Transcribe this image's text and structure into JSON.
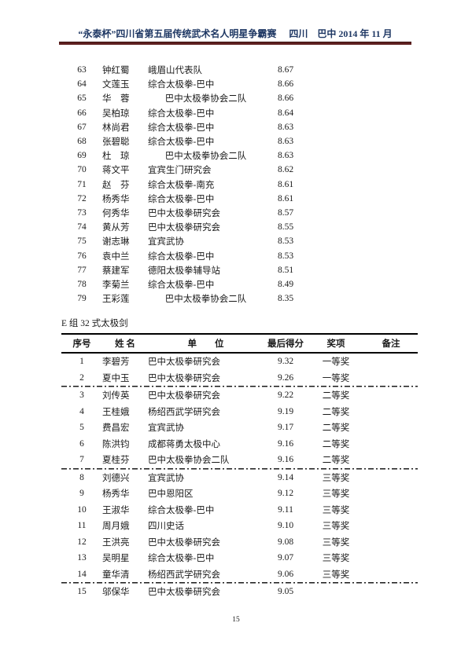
{
  "colors": {
    "header_text_navy": "#1F3864",
    "header_rule_maroon": "#5F2120",
    "body_text": "#1A1A1A"
  },
  "header": {
    "title": "“永泰杯”四川省第五届传统武术名人明星争霸赛",
    "location_date": "四川　巴中 2014 年 11 月"
  },
  "previous_group_results": {
    "rows": [
      {
        "no": "63",
        "name": "钟红蜀",
        "unit": "峨眉山代表队",
        "score": "8.67",
        "unit_center": false
      },
      {
        "no": "64",
        "name": "文莲玉",
        "unit": "综合太极拳-巴中",
        "score": "8.66",
        "unit_center": false
      },
      {
        "no": "65",
        "name": "华　蓉",
        "unit": "巴中太极拳协会二队",
        "score": "8.66",
        "unit_center": true
      },
      {
        "no": "66",
        "name": "吴柏琼",
        "unit": "综合太极拳-巴中",
        "score": "8.64",
        "unit_center": false
      },
      {
        "no": "67",
        "name": "林尚君",
        "unit": "综合太极拳-巴中",
        "score": "8.63",
        "unit_center": false
      },
      {
        "no": "68",
        "name": "张碧聪",
        "unit": "综合太极拳-巴中",
        "score": "8.63",
        "unit_center": false
      },
      {
        "no": "69",
        "name": "杜　琼",
        "unit": "巴中太极拳协会二队",
        "score": "8.63",
        "unit_center": true
      },
      {
        "no": "70",
        "name": "蒋文平",
        "unit": "宜宾生门研究会",
        "score": "8.62",
        "unit_center": false
      },
      {
        "no": "71",
        "name": "赵　芬",
        "unit": "综合太极拳-南充",
        "score": "8.61",
        "unit_center": false
      },
      {
        "no": "72",
        "name": "杨秀华",
        "unit": "综合太极拳-巴中",
        "score": "8.61",
        "unit_center": false
      },
      {
        "no": "73",
        "name": "何秀华",
        "unit": "巴中太极拳研究会",
        "score": "8.57",
        "unit_center": false
      },
      {
        "no": "74",
        "name": "黄从芳",
        "unit": "巴中太极拳研究会",
        "score": "8.55",
        "unit_center": false
      },
      {
        "no": "75",
        "name": "谢志琳",
        "unit": "宜宾武协",
        "score": "8.53",
        "unit_center": false
      },
      {
        "no": "76",
        "name": "袁中兰",
        "unit": "综合太极拳-巴中",
        "score": "8.53",
        "unit_center": false
      },
      {
        "no": "77",
        "name": "蔡建军",
        "unit": "德阳太极拳辅导站",
        "score": "8.51",
        "unit_center": false
      },
      {
        "no": "78",
        "name": "李菊兰",
        "unit": "综合太极拳-巴中",
        "score": "8.49",
        "unit_center": false
      },
      {
        "no": "79",
        "name": "王彩莲",
        "unit": "巴中太极拳协会二队",
        "score": "8.35",
        "unit_center": true
      }
    ]
  },
  "section_e": {
    "title": "E 组 32 式太极剑",
    "headers": [
      "序号",
      "姓 名",
      "单　　位",
      "最后得分",
      "奖项",
      "备注"
    ],
    "rows": [
      {
        "no": "1",
        "name": "李碧芳",
        "unit": "巴中太极拳研究会",
        "score": "9.32",
        "award": "一等奖",
        "remark": "",
        "divider_after": false
      },
      {
        "no": "2",
        "name": "夏中玉",
        "unit": "巴中太极拳研究会",
        "score": "9.26",
        "award": "一等奖",
        "remark": "",
        "divider_after": true
      },
      {
        "no": "3",
        "name": "刘传英",
        "unit": "巴中太极拳研究会",
        "score": "9.22",
        "award": "二等奖",
        "remark": "",
        "divider_after": false
      },
      {
        "no": "4",
        "name": "王桂娥",
        "unit": "杨绍西武学研究会",
        "score": "9.19",
        "award": "二等奖",
        "remark": "",
        "divider_after": false
      },
      {
        "no": "5",
        "name": "费昌宏",
        "unit": "宜宾武协",
        "score": "9.17",
        "award": "二等奖",
        "remark": "",
        "divider_after": false
      },
      {
        "no": "6",
        "name": "陈洪钧",
        "unit": "成都蒋勇太极中心",
        "score": "9.16",
        "award": "二等奖",
        "remark": "",
        "divider_after": false
      },
      {
        "no": "7",
        "name": "夏桂芬",
        "unit": "巴中太极拳协会二队",
        "score": "9.16",
        "award": "二等奖",
        "remark": "",
        "divider_after": true
      },
      {
        "no": "8",
        "name": "刘德兴",
        "unit": "宜宾武协",
        "score": "9.14",
        "award": "三等奖",
        "remark": "",
        "divider_after": false
      },
      {
        "no": "9",
        "name": "杨秀华",
        "unit": "巴中恩阳区",
        "score": "9.12",
        "award": "三等奖",
        "remark": "",
        "divider_after": false
      },
      {
        "no": "10",
        "name": "王淑华",
        "unit": "综合太极拳-巴中",
        "score": "9.11",
        "award": "三等奖",
        "remark": "",
        "divider_after": false
      },
      {
        "no": "11",
        "name": "周月娥",
        "unit": "四川史话",
        "score": "9.10",
        "award": "三等奖",
        "remark": "",
        "divider_after": false
      },
      {
        "no": "12",
        "name": "王洪亮",
        "unit": "巴中太极拳研究会",
        "score": "9.08",
        "award": "三等奖",
        "remark": "",
        "divider_after": false
      },
      {
        "no": "13",
        "name": "吴明星",
        "unit": "综合太极拳-巴中",
        "score": "9.07",
        "award": "三等奖",
        "remark": "",
        "divider_after": false
      },
      {
        "no": "14",
        "name": "童华清",
        "unit": "杨绍西武学研究会",
        "score": "9.06",
        "award": "三等奖",
        "remark": "",
        "divider_after": true
      },
      {
        "no": "15",
        "name": "邬保华",
        "unit": "巴中太极拳研究会",
        "score": "9.05",
        "award": "",
        "remark": "",
        "divider_after": false
      }
    ]
  },
  "footer": {
    "page_number": "15"
  }
}
